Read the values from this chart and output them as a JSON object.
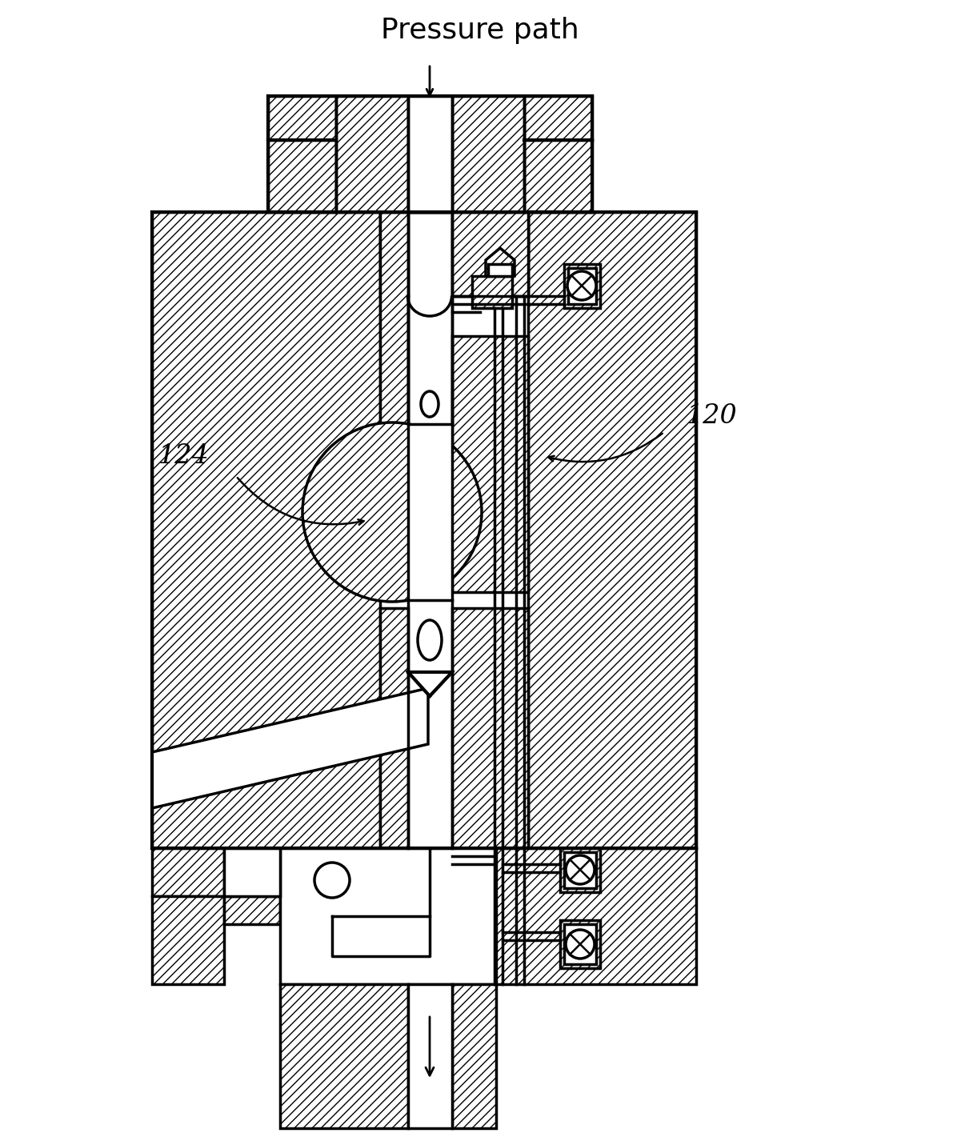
{
  "label_pressure_path": "Pressure path",
  "label_124": "124",
  "label_120": "120",
  "bg_color": "#ffffff",
  "lw": 2.5,
  "figsize": [
    12.01,
    14.21
  ],
  "dpi": 100,
  "hatch": "///"
}
